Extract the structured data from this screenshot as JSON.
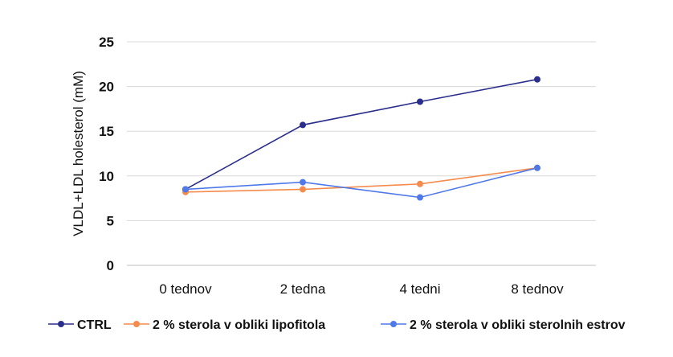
{
  "chart_data": {
    "type": "line",
    "title": "",
    "xlabel": "",
    "ylabel": "VLDL+LDL holesterol (mM)",
    "categories": [
      "0 tednov",
      "2 tedna",
      "4 tedni",
      "8 tednov"
    ],
    "ylim": [
      0,
      25
    ],
    "yticks": [
      "0",
      "5",
      "10",
      "15",
      "20",
      "25"
    ],
    "grid": true,
    "legend_position": "bottom",
    "series": [
      {
        "name": "CTRL",
        "color": "#2b2f8c",
        "values": [
          8.5,
          15.7,
          18.3,
          20.8
        ]
      },
      {
        "name": "2 % sterola v obliki lipofitola",
        "color": "#f58b4c",
        "values": [
          8.2,
          8.5,
          9.1,
          10.9
        ]
      },
      {
        "name": "2 % sterola v obliki sterolnih estrov",
        "color": "#4f79e8",
        "values": [
          8.5,
          9.3,
          7.6,
          10.9
        ]
      }
    ]
  }
}
